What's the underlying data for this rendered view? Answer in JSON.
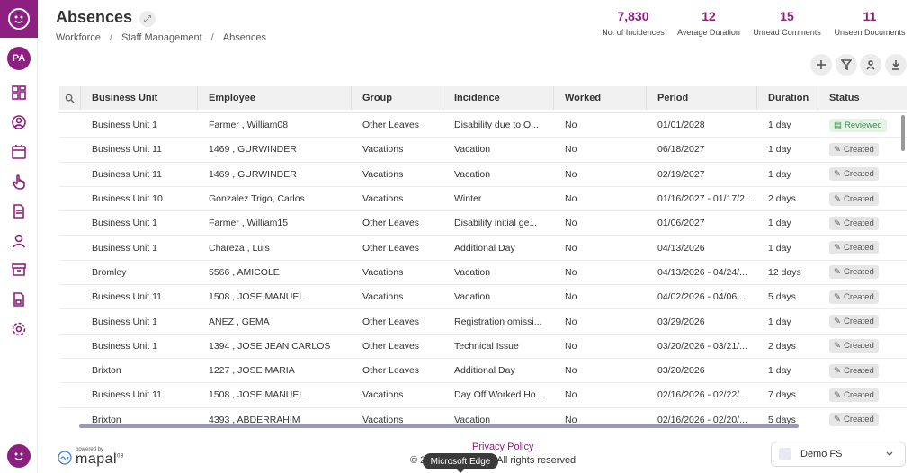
{
  "header": {
    "title": "Absences",
    "breadcrumb": [
      "Workforce",
      "Staff Management",
      "Absences"
    ]
  },
  "user": {
    "initials": "PA"
  },
  "stats": [
    {
      "value": "7,830",
      "label": "No. of Incidences"
    },
    {
      "value": "12",
      "label": "Average Duration"
    },
    {
      "value": "15",
      "label": "Unread Comments"
    },
    {
      "value": "11",
      "label": "Unseen Documents"
    }
  ],
  "toolbar": [
    "add-icon",
    "filter-icon",
    "download-person-icon",
    "download-icon"
  ],
  "table": {
    "columns": [
      "Business Unit",
      "Employee",
      "Group",
      "Incidence",
      "Worked",
      "Period",
      "Duration",
      "Status"
    ],
    "rows": [
      [
        "Business Unit 1",
        "Farmer , William08",
        "Other Leaves",
        "Disability due to O...",
        "No",
        "01/01/2028",
        "1 day",
        "Reviewed"
      ],
      [
        "Business Unit 11",
        "1469 , GURWINDER",
        "Vacations",
        "Vacation",
        "No",
        "06/18/2027",
        "1 day",
        "Created"
      ],
      [
        "Business Unit 11",
        "1469 , GURWINDER",
        "Vacations",
        "Vacation",
        "No",
        "02/19/2027",
        "1 day",
        "Created"
      ],
      [
        "Business Unit 10",
        "Gonzalez Trigo, Carlos",
        "Vacations",
        "Winter",
        "No",
        "01/16/2027 - 01/17/2...",
        "2 days",
        "Created"
      ],
      [
        "Business Unit 1",
        "Farmer , William15",
        "Other Leaves",
        "Disability initial ge...",
        "No",
        "01/06/2027",
        "1 day",
        "Created"
      ],
      [
        "Business Unit 1",
        "Chareza , Luis",
        "Other Leaves",
        "Additional Day",
        "No",
        "04/13/2026",
        "1 day",
        "Created"
      ],
      [
        "Bromley",
        "5566 , AMICOLE",
        "Vacations",
        "Vacation",
        "No",
        "04/13/2026 - 04/24/...",
        "12 days",
        "Created"
      ],
      [
        "Business Unit 11",
        "1508 , JOSE MANUEL",
        "Vacations",
        "Vacation",
        "No",
        "04/02/2026 - 04/06...",
        "5 days",
        "Created"
      ],
      [
        "Business Unit 1",
        "AÑEZ , GEMA",
        "Other Leaves",
        "Registration omissi...",
        "No",
        "03/29/2026",
        "1 day",
        "Created"
      ],
      [
        "Business Unit 1",
        "1394 , JOSE JEAN CARLOS",
        "Other Leaves",
        "Technical Issue",
        "No",
        "03/20/2026 - 03/21/...",
        "2 days",
        "Created"
      ],
      [
        "Brixton",
        "1227 , JOSE MARIA",
        "Other Leaves",
        "Additional Day",
        "No",
        "03/20/2026",
        "1 day",
        "Created"
      ],
      [
        "Business Unit 11",
        "1508 , JOSE MANUEL",
        "Vacations",
        "Day Off Worked Ho...",
        "No",
        "02/16/2026 - 02/22/...",
        "7 days",
        "Created"
      ],
      [
        "Brixton",
        "4393 , ABDERRAHIM",
        "Vacations",
        "Vacation",
        "No",
        "02/16/2026 - 02/20/...",
        "5 days",
        "Created"
      ]
    ]
  },
  "footer": {
    "powered_by": "powered by",
    "brand": "mapal",
    "brand_sup": "08",
    "privacy": "Privacy Policy",
    "copyright": "© 2                    up. All rights reserved",
    "tooltip": "Microsoft Edge",
    "company": "Demo FS"
  },
  "colors": {
    "accent": "#8c1f7f",
    "reviewed": "#3f8a4b"
  }
}
